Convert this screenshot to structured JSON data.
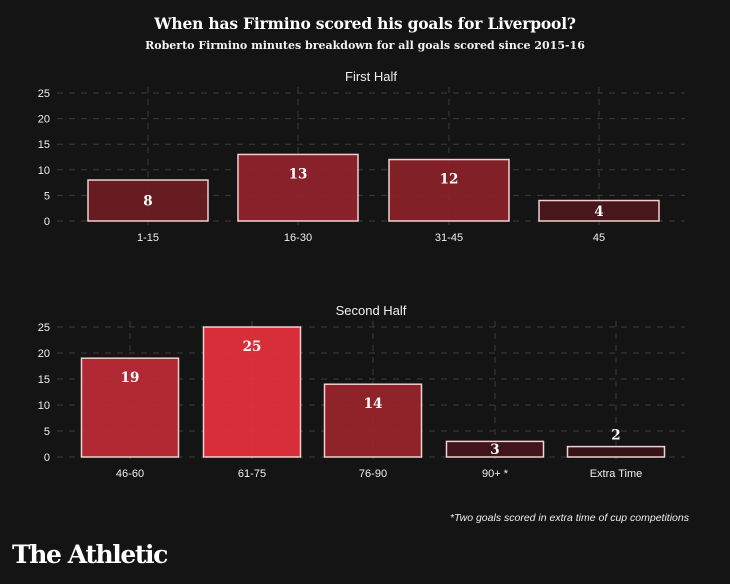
{
  "title": "When has Firmino scored his goals for Liverpool?",
  "subtitle": "Roberto Firmino minutes breakdown for all goals scored since 2015-16",
  "footnote": "*Two goals scored in extra time of cup competitions",
  "logo": "The Athletic",
  "colors": {
    "background": "#141414",
    "bar_border": "#f0d0d0",
    "bar_min": "#3a1418",
    "bar_max": "#e8313e"
  },
  "chart_data": [
    {
      "type": "bar",
      "title": "First Half",
      "categories": [
        "1-15",
        "16-30",
        "31-45",
        "45"
      ],
      "values": [
        8,
        13,
        12,
        4
      ],
      "xlabel": "",
      "ylabel": "",
      "ylim": [
        0,
        25
      ],
      "yticks": [
        0,
        5,
        10,
        15,
        20,
        25
      ],
      "grid": true,
      "color_scale": "value intensity (dark to bright red)"
    },
    {
      "type": "bar",
      "title": "Second Half",
      "categories": [
        "46-60",
        "61-75",
        "76-90",
        "90+ *",
        "Extra Time"
      ],
      "values": [
        19,
        25,
        14,
        3,
        2
      ],
      "xlabel": "",
      "ylabel": "",
      "ylim": [
        0,
        25
      ],
      "yticks": [
        0,
        5,
        10,
        15,
        20,
        25
      ],
      "grid": true,
      "color_scale": "value intensity (dark to bright red)"
    }
  ]
}
